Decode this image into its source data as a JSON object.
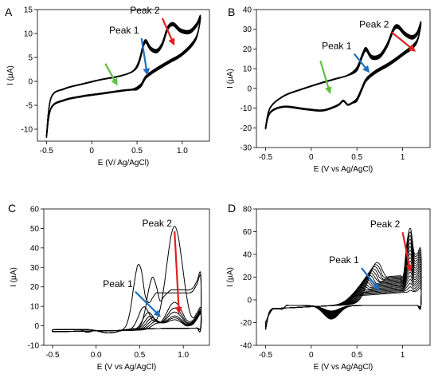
{
  "chart_data": [
    {
      "panel": "A",
      "type": "line",
      "xlabel": "E (V/ Ag/AgCl)",
      "ylabel": "I (µA)",
      "xlim": [
        -0.6,
        1.3
      ],
      "ylim": [
        -12.5,
        15
      ],
      "xticks": [
        -0.5,
        0,
        0.5,
        1
      ],
      "xtick_labels": [
        "-0.5",
        "0",
        "0.5",
        "1.0"
      ],
      "yticks": [
        -10,
        -5,
        0,
        5,
        10,
        15
      ],
      "ytick_labels": [
        "-10",
        "-5",
        "0",
        "5",
        "10",
        "15"
      ],
      "grid": false,
      "series": [
        {
          "values_forward": [
            [
              -0.5,
              -11.5
            ],
            [
              -0.45,
              -3.5
            ],
            [
              -0.3,
              -1.6
            ],
            [
              -0.1,
              -0.6
            ],
            [
              0.1,
              0.3
            ],
            [
              0.3,
              1.0
            ],
            [
              0.45,
              2.0
            ],
            [
              0.52,
              3.6
            ],
            [
              0.57,
              7.2
            ],
            [
              0.6,
              8.0
            ],
            [
              0.65,
              6.5
            ],
            [
              0.72,
              6.0
            ],
            [
              0.78,
              7.5
            ],
            [
              0.84,
              10.8
            ],
            [
              0.9,
              11.6
            ],
            [
              0.98,
              10.3
            ],
            [
              1.08,
              10.0
            ],
            [
              1.16,
              11.5
            ],
            [
              1.2,
              13.0
            ]
          ],
          "values_reverse": [
            [
              1.2,
              13.0
            ],
            [
              1.15,
              9.2
            ],
            [
              1.0,
              6.0
            ],
            [
              0.85,
              4.3
            ],
            [
              0.7,
              2.6
            ],
            [
              0.6,
              1.2
            ],
            [
              0.55,
              -0.4
            ],
            [
              0.5,
              -1.2
            ],
            [
              0.45,
              -1.6
            ],
            [
              0.35,
              -1.8
            ],
            [
              0.2,
              -2.2
            ],
            [
              0.05,
              -2.6
            ],
            [
              -0.1,
              -3.0
            ],
            [
              -0.3,
              -3.8
            ],
            [
              -0.45,
              -5.5
            ],
            [
              -0.5,
              -11.5
            ]
          ]
        }
      ],
      "annotations": [
        {
          "text": "Peak 1",
          "color": "#1f6fbf",
          "from": [
            0.55,
            9.0
          ],
          "to": [
            0.61,
            1.8
          ]
        },
        {
          "text": "Peak 2",
          "color": "#e02020",
          "from": [
            0.78,
            13.2
          ],
          "to": [
            0.9,
            8.0
          ]
        },
        {
          "text": "",
          "color": "#60c040",
          "from": [
            0.15,
            3.7
          ],
          "to": [
            0.27,
            -0.4
          ]
        }
      ],
      "line_count": 6
    },
    {
      "panel": "B",
      "type": "line",
      "xlabel": "E (V vs Ag/AgCl)",
      "ylabel": "I (µA)",
      "xlim": [
        -0.6,
        1.3
      ],
      "ylim": [
        -30,
        40
      ],
      "xticks": [
        -0.5,
        0,
        0.5,
        1
      ],
      "xtick_labels": [
        "-0.5",
        "0",
        "0.5",
        "1"
      ],
      "yticks": [
        -30,
        -20,
        -10,
        0,
        10,
        20,
        30,
        40
      ],
      "ytick_labels": [
        "-30",
        "-20",
        "-10",
        "0",
        "10",
        "20",
        "30",
        "40"
      ],
      "grid": false,
      "series": [
        {
          "values_forward": [
            [
              -0.5,
              -20
            ],
            [
              -0.45,
              -10
            ],
            [
              -0.3,
              -4
            ],
            [
              -0.1,
              -0.5
            ],
            [
              0.1,
              2.5
            ],
            [
              0.25,
              4.5
            ],
            [
              0.4,
              6.5
            ],
            [
              0.5,
              9
            ],
            [
              0.56,
              16
            ],
            [
              0.6,
              19
            ],
            [
              0.66,
              15
            ],
            [
              0.75,
              15.5
            ],
            [
              0.83,
              21
            ],
            [
              0.9,
              29
            ],
            [
              0.95,
              30.5
            ],
            [
              1.02,
              27
            ],
            [
              1.1,
              25
            ],
            [
              1.16,
              27
            ],
            [
              1.2,
              32
            ]
          ],
          "values_reverse": [
            [
              1.2,
              32
            ],
            [
              1.15,
              24
            ],
            [
              1.0,
              18
            ],
            [
              0.85,
              13
            ],
            [
              0.7,
              9
            ],
            [
              0.6,
              5
            ],
            [
              0.55,
              0
            ],
            [
              0.5,
              -5
            ],
            [
              0.45,
              -7
            ],
            [
              0.4,
              -8
            ],
            [
              0.35,
              -6
            ],
            [
              0.3,
              -8
            ],
            [
              0.2,
              -10
            ],
            [
              0.1,
              -11
            ],
            [
              -0.1,
              -10
            ],
            [
              -0.3,
              -9
            ],
            [
              -0.45,
              -12
            ],
            [
              -0.5,
              -20
            ]
          ]
        }
      ],
      "annotations": [
        {
          "text": "Peak 1",
          "color": "#1f6fbf",
          "from": [
            0.47,
            17.5
          ],
          "to": [
            0.62,
            9.0
          ]
        },
        {
          "text": "Peak 2",
          "color": "#e02020",
          "from": [
            0.88,
            28.5
          ],
          "to": [
            1.12,
            19.5
          ]
        },
        {
          "text": "",
          "color": "#60c040",
          "from": [
            0.1,
            14.0
          ],
          "to": [
            0.2,
            -1.5
          ]
        }
      ],
      "line_count": 8
    },
    {
      "panel": "C",
      "type": "line",
      "xlabel": "E (V vs Ag/AgCl)",
      "ylabel": "I (µA)",
      "xlim": [
        -0.6,
        1.3
      ],
      "ylim": [
        -10,
        60
      ],
      "xticks": [
        -0.5,
        0,
        0.5,
        1
      ],
      "xtick_labels": [
        "-0.5",
        "0.0",
        "0.5",
        "1.0"
      ],
      "yticks": [
        -10,
        0,
        10,
        20,
        30,
        40,
        50,
        60
      ],
      "ytick_labels": [
        "-10",
        "0",
        "10",
        "20",
        "30",
        "40",
        "50",
        "60"
      ],
      "grid": false,
      "series": [
        {
          "name": "",
          "peak_x": 0.49,
          "peak_y": 34
        },
        {
          "name": "",
          "peak_x": 0.65,
          "peak_y": 27
        },
        {
          "name": "",
          "peak_x": 0.9,
          "peak_y": 53
        }
      ],
      "annotations": [
        {
          "text": "Peak 1",
          "color": "#1f6fbf",
          "from": [
            0.45,
            17.5
          ],
          "to": [
            0.72,
            5.5
          ]
        },
        {
          "text": "Peak 2",
          "color": "#e02020",
          "from": [
            0.9,
            48.5
          ],
          "to": [
            0.95,
            7.5
          ]
        }
      ],
      "line_count": 9
    },
    {
      "panel": "D",
      "type": "line",
      "xlabel": "E (V vs Ag/AgCl)",
      "ylabel": "I (µA)",
      "xlim": [
        -0.6,
        1.3
      ],
      "ylim": [
        -40,
        80
      ],
      "xticks": [
        -0.5,
        0,
        0.5,
        1
      ],
      "xtick_labels": [
        "-0.5",
        "0",
        "0.5",
        "1"
      ],
      "yticks": [
        -40,
        -20,
        0,
        20,
        40,
        60,
        80
      ],
      "ytick_labels": [
        "-40",
        "-20",
        "0",
        "20",
        "40",
        "60",
        "80"
      ],
      "grid": false,
      "series": [
        {
          "name": "",
          "peak_x": 0.72,
          "peak_y": 36
        },
        {
          "name": "",
          "peak_x": 1.08,
          "peak_y": 65
        }
      ],
      "annotations": [
        {
          "text": "Peak 1",
          "color": "#1f6fbf",
          "from": [
            0.55,
            28.0
          ],
          "to": [
            0.73,
            10.0
          ]
        },
        {
          "text": "Peak 2",
          "color": "#e02020",
          "from": [
            1.0,
            59.5
          ],
          "to": [
            1.08,
            27.0
          ]
        }
      ],
      "line_count": 18
    }
  ]
}
